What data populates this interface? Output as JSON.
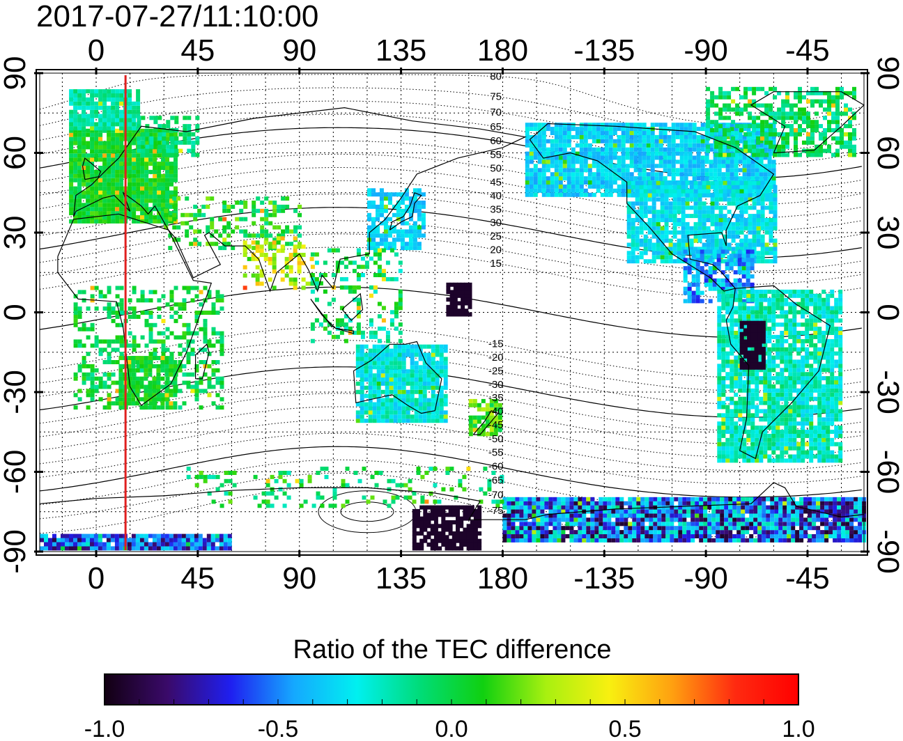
{
  "timestamp": "2017-07-27/11:10:00",
  "colorbar": {
    "title": "Ratio of the TEC difference",
    "ticks": [
      "-1.0",
      "-0.5",
      "0.0",
      "0.5",
      "1.0"
    ],
    "values": [
      -1.0,
      -0.5,
      0.0,
      0.5,
      1.0
    ],
    "colors": [
      "#120012",
      "#3a0a6a",
      "#1f1ff0",
      "#15a8ff",
      "#00f0f0",
      "#00dc78",
      "#10d010",
      "#a8f010",
      "#f8f010",
      "#ffa010",
      "#ff2a10",
      "#ff0000"
    ]
  },
  "map": {
    "lon_ticks_top": [
      "0",
      "45",
      "90",
      "135",
      "180",
      "-135",
      "-90",
      "-45"
    ],
    "lon_ticks_bottom": [
      "0",
      "45",
      "90",
      "135",
      "180",
      "-135",
      "-90",
      "-45"
    ],
    "lat_ticks_left": [
      "90",
      "60",
      "30",
      "0",
      "-30",
      "-60",
      "-90"
    ],
    "lat_ticks_right": [
      "90",
      "60",
      "30",
      "0",
      "-30",
      "-60",
      "-90"
    ],
    "lon_range": [
      -25,
      340
    ],
    "lat_range": [
      -90,
      90
    ],
    "marker_longitude": 13,
    "marker_color": "#e02020",
    "mag_lat_labels_north": [
      "80",
      "75",
      "70",
      "65",
      "60",
      "55",
      "50",
      "45",
      "40",
      "35",
      "30",
      "25",
      "20",
      "15"
    ],
    "mag_lat_labels_south": [
      "-15",
      "-20",
      "-25",
      "-30",
      "-35",
      "-40",
      "-45",
      "-50",
      "-55",
      "-60",
      "-65",
      "-70",
      "-75"
    ]
  }
}
